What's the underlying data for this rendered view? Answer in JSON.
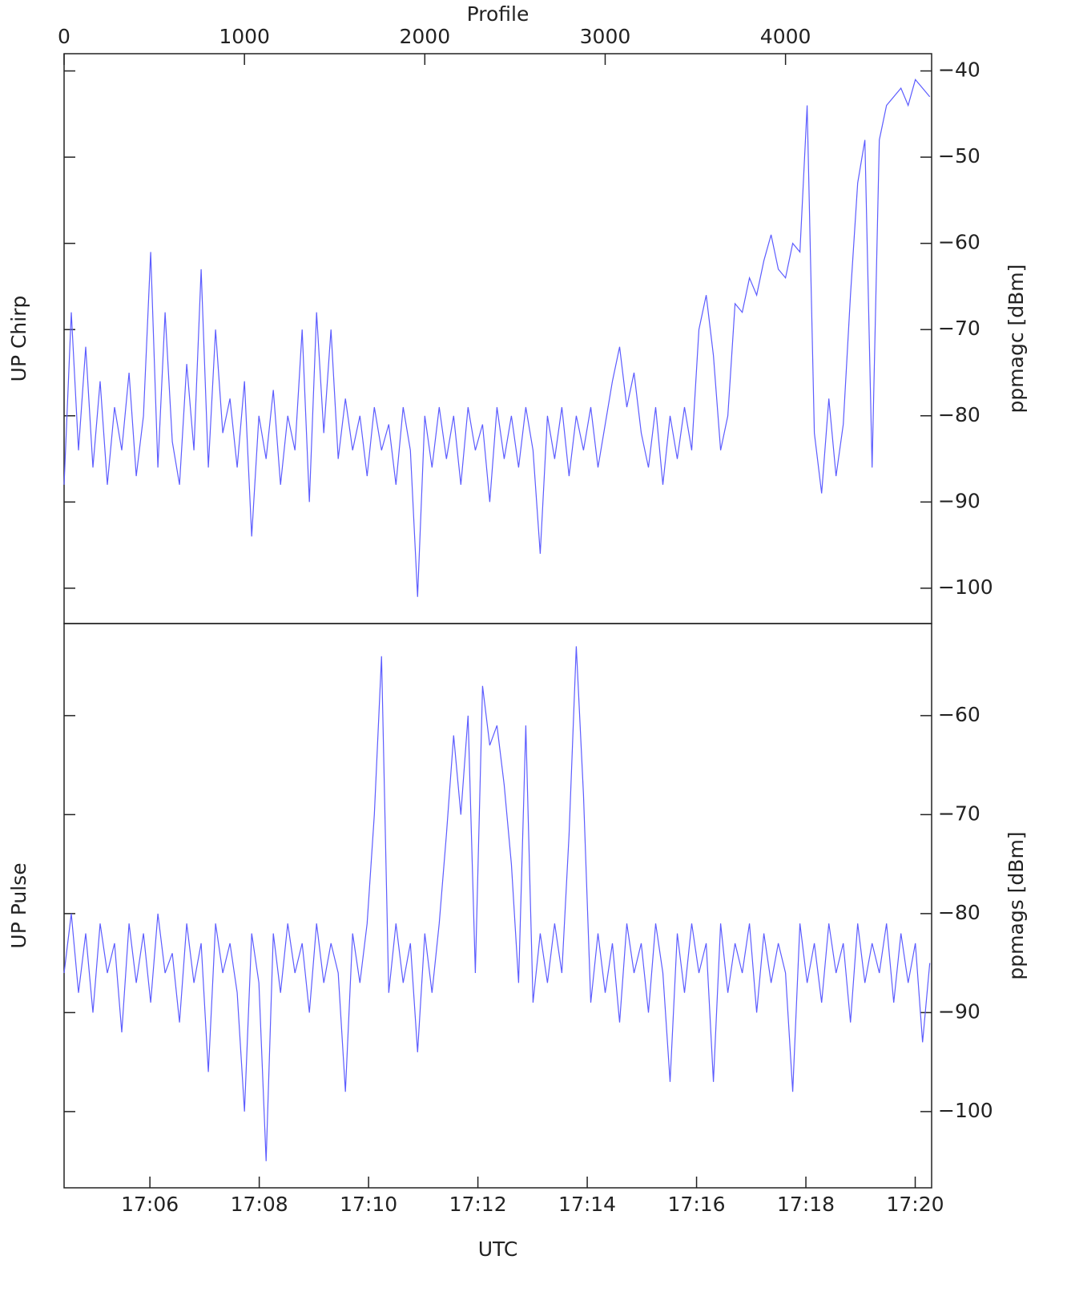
{
  "chart_data": [
    {
      "type": "line",
      "panel_label": "UP Chirp",
      "ylabel": "ppmagc [dBm]",
      "xlabel": "Profile",
      "xlim": [
        0,
        4810
      ],
      "xticks": [
        0,
        1000,
        2000,
        3000,
        4000
      ],
      "ylim": [
        -104.1,
        -38
      ],
      "yticks": [
        {
          "value": -40,
          "label": "−40"
        },
        {
          "value": -50,
          "label": "−50"
        },
        {
          "value": -60,
          "label": "−60"
        },
        {
          "value": -70,
          "label": "−70"
        },
        {
          "value": -80,
          "label": "−80"
        },
        {
          "value": -90,
          "label": "−90"
        },
        {
          "value": -100,
          "label": "−100"
        }
      ],
      "color": "#5c5cff",
      "x": [
        0,
        40,
        80,
        120,
        160,
        200,
        240,
        280,
        320,
        360,
        400,
        440,
        480,
        520,
        560,
        600,
        640,
        680,
        720,
        760,
        800,
        840,
        880,
        920,
        960,
        1000,
        1040,
        1080,
        1120,
        1160,
        1200,
        1240,
        1280,
        1320,
        1360,
        1400,
        1440,
        1480,
        1520,
        1560,
        1600,
        1640,
        1680,
        1720,
        1760,
        1800,
        1840,
        1880,
        1920,
        1960,
        2000,
        2040,
        2080,
        2120,
        2160,
        2200,
        2240,
        2280,
        2320,
        2360,
        2400,
        2440,
        2480,
        2520,
        2560,
        2600,
        2640,
        2680,
        2720,
        2760,
        2800,
        2840,
        2880,
        2920,
        2960,
        3000,
        3040,
        3080,
        3120,
        3160,
        3200,
        3240,
        3280,
        3320,
        3360,
        3400,
        3440,
        3480,
        3520,
        3560,
        3600,
        3640,
        3680,
        3720,
        3760,
        3800,
        3840,
        3880,
        3920,
        3960,
        4000,
        4040,
        4080,
        4120,
        4160,
        4200,
        4240,
        4280,
        4320,
        4360,
        4400,
        4440,
        4480,
        4520,
        4560,
        4600,
        4640,
        4680,
        4720,
        4760,
        4800
      ],
      "values": [
        -88,
        -68,
        -84,
        -72,
        -86,
        -76,
        -88,
        -79,
        -84,
        -75,
        -87,
        -80,
        -61,
        -86,
        -68,
        -83,
        -88,
        -74,
        -84,
        -63,
        -86,
        -70,
        -82,
        -78,
        -86,
        -76,
        -94,
        -80,
        -85,
        -77,
        -88,
        -80,
        -84,
        -70,
        -90,
        -68,
        -82,
        -70,
        -85,
        -78,
        -84,
        -80,
        -87,
        -79,
        -84,
        -81,
        -88,
        -79,
        -84,
        -101,
        -80,
        -86,
        -79,
        -85,
        -80,
        -88,
        -79,
        -84,
        -81,
        -90,
        -79,
        -85,
        -80,
        -86,
        -79,
        -84,
        -96,
        -80,
        -85,
        -79,
        -87,
        -80,
        -84,
        -79,
        -86,
        -81,
        -76,
        -72,
        -79,
        -75,
        -82,
        -86,
        -79,
        -88,
        -80,
        -85,
        -79,
        -84,
        -70,
        -66,
        -73,
        -84,
        -80,
        -67,
        -68,
        -64,
        -66,
        -62,
        -59,
        -63,
        -64,
        -60,
        -61,
        -44,
        -82,
        -89,
        -78,
        -87,
        -81,
        -66,
        -53,
        -48,
        -86,
        -48,
        -44,
        -43,
        -42,
        -44,
        -41,
        -42,
        -43
      ]
    },
    {
      "type": "line",
      "panel_label": "UP Pulse",
      "ylabel": "ppmags [dBm]",
      "xlabel": "UTC",
      "xlim": [
        0,
        4810
      ],
      "x2lim": [
        4.43,
        20.3
      ],
      "x2ticks": [
        {
          "value": 6,
          "label": "17:06"
        },
        {
          "value": 8,
          "label": "17:08"
        },
        {
          "value": 10,
          "label": "17:10"
        },
        {
          "value": 12,
          "label": "17:12"
        },
        {
          "value": 14,
          "label": "17:14"
        },
        {
          "value": 16,
          "label": "17:16"
        },
        {
          "value": 18,
          "label": "17:18"
        },
        {
          "value": 20,
          "label": "17:20"
        }
      ],
      "ylim": [
        -107.7,
        -50.7
      ],
      "yticks": [
        {
          "value": -60,
          "label": "−60"
        },
        {
          "value": -70,
          "label": "−70"
        },
        {
          "value": -80,
          "label": "−80"
        },
        {
          "value": -90,
          "label": "−90"
        },
        {
          "value": -100,
          "label": "−100"
        }
      ],
      "color": "#5c5cff",
      "x": [
        0,
        40,
        80,
        120,
        160,
        200,
        240,
        280,
        320,
        360,
        400,
        440,
        480,
        520,
        560,
        600,
        640,
        680,
        720,
        760,
        800,
        840,
        880,
        920,
        960,
        1000,
        1040,
        1080,
        1120,
        1160,
        1200,
        1240,
        1280,
        1320,
        1360,
        1400,
        1440,
        1480,
        1520,
        1560,
        1600,
        1640,
        1680,
        1720,
        1760,
        1800,
        1840,
        1880,
        1920,
        1960,
        2000,
        2040,
        2080,
        2120,
        2160,
        2200,
        2240,
        2280,
        2320,
        2360,
        2400,
        2440,
        2480,
        2520,
        2560,
        2600,
        2640,
        2680,
        2720,
        2760,
        2800,
        2840,
        2880,
        2920,
        2960,
        3000,
        3040,
        3080,
        3120,
        3160,
        3200,
        3240,
        3280,
        3320,
        3360,
        3400,
        3440,
        3480,
        3520,
        3560,
        3600,
        3640,
        3680,
        3720,
        3760,
        3800,
        3840,
        3880,
        3920,
        3960,
        4000,
        4040,
        4080,
        4120,
        4160,
        4200,
        4240,
        4280,
        4320,
        4360,
        4400,
        4440,
        4480,
        4520,
        4560,
        4600,
        4640,
        4680,
        4720,
        4760,
        4800
      ],
      "values": [
        -86,
        -80,
        -88,
        -82,
        -90,
        -81,
        -86,
        -83,
        -92,
        -81,
        -87,
        -82,
        -89,
        -80,
        -86,
        -84,
        -91,
        -81,
        -87,
        -83,
        -96,
        -81,
        -86,
        -83,
        -88,
        -100,
        -82,
        -87,
        -105,
        -82,
        -88,
        -81,
        -86,
        -83,
        -90,
        -81,
        -87,
        -83,
        -86,
        -98,
        -82,
        -87,
        -81,
        -70,
        -54,
        -88,
        -81,
        -87,
        -83,
        -94,
        -82,
        -88,
        -81,
        -72,
        -62,
        -70,
        -60,
        -86,
        -57,
        -63,
        -61,
        -67,
        -75,
        -87,
        -61,
        -89,
        -82,
        -87,
        -81,
        -86,
        -72,
        -53,
        -68,
        -89,
        -82,
        -88,
        -83,
        -91,
        -81,
        -86,
        -83,
        -90,
        -81,
        -86,
        -97,
        -82,
        -88,
        -81,
        -86,
        -83,
        -97,
        -81,
        -88,
        -83,
        -86,
        -81,
        -90,
        -82,
        -87,
        -83,
        -86,
        -98,
        -81,
        -87,
        -83,
        -89,
        -81,
        -86,
        -83,
        -91,
        -81,
        -87,
        -83,
        -86,
        -81,
        -89,
        -82,
        -87,
        -83,
        -93,
        -85
      ]
    }
  ]
}
